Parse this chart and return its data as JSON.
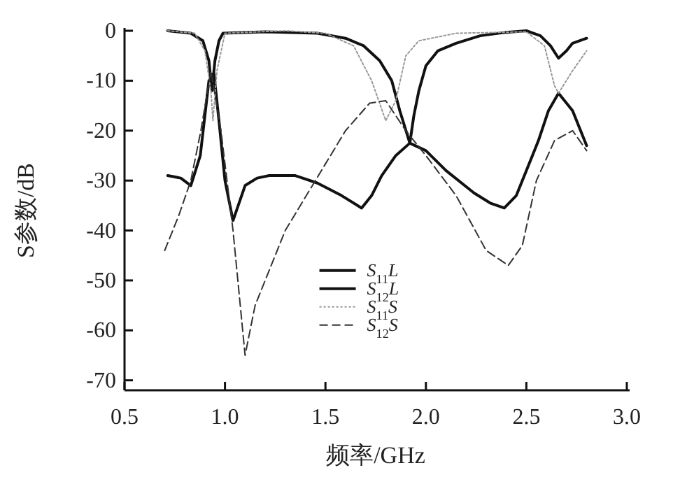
{
  "chart_data": {
    "type": "line",
    "xlabel": "频率/GHz",
    "ylabel": "S参数/dB",
    "xlim": [
      0.5,
      3.0
    ],
    "ylim": [
      -72,
      0
    ],
    "xticks": [
      0.5,
      {
        "value": 1,
        "label": "1.0"
      },
      1.5,
      {
        "value": 2,
        "label": "2.0"
      },
      2.5,
      {
        "value": 3,
        "label": "3.0"
      }
    ],
    "yticks": [
      0,
      -10,
      -20,
      -30,
      -40,
      -50,
      -60,
      -70
    ],
    "grid": false,
    "legend": "bottom",
    "marker": "none",
    "series": [
      {
        "name": "S$_{11}$L",
        "color": "#111111",
        "line_style": "solid",
        "x": [
          0.715,
          0.83,
          0.89,
          0.92,
          0.935,
          0.95,
          0.97,
          0.99,
          1.2,
          1.46,
          1.6,
          1.69,
          1.77,
          1.83,
          1.87,
          1.92,
          1.94,
          1.965,
          2.0,
          2.06,
          2.15,
          2.27,
          2.4,
          2.5,
          2.57,
          2.62,
          2.66,
          2.7,
          2.73,
          2.8
        ],
        "values": [
          0,
          -0.5,
          -2,
          -6,
          -12,
          -6,
          -2,
          -0.5,
          -0.2,
          -0.5,
          -1.5,
          -3,
          -6,
          -10,
          -16,
          -22.5,
          -17,
          -12,
          -7,
          -4,
          -2.5,
          -1,
          -0.3,
          0,
          -1,
          -3,
          -5.5,
          -4,
          -2.5,
          -1.5
        ]
      },
      {
        "name": "S$_{12}$L",
        "color": "#111111",
        "line_style": "solid",
        "x": [
          0.715,
          0.78,
          0.83,
          0.877,
          0.92,
          0.945,
          0.97,
          1.0,
          1.04,
          1.1,
          1.16,
          1.22,
          1.35,
          1.46,
          1.58,
          1.68,
          1.73,
          1.78,
          1.85,
          1.92,
          2.0,
          2.1,
          2.24,
          2.32,
          2.39,
          2.45,
          2.5,
          2.56,
          2.61,
          2.66,
          2.73,
          2.8
        ],
        "values": [
          -29,
          -29.5,
          -31,
          -25,
          -10,
          -8.5,
          -18,
          -30,
          -38,
          -31,
          -29.5,
          -29,
          -29,
          -30.5,
          -33,
          -35.5,
          -33,
          -29,
          -25,
          -22.5,
          -24,
          -28,
          -32.5,
          -34.5,
          -35.5,
          -33,
          -28,
          -22,
          -16,
          -12.5,
          -16,
          -23
        ]
      },
      {
        "name": "S$_{11}$S",
        "color": "#999999",
        "line_style": "dotted",
        "x": [
          0.715,
          0.85,
          0.9,
          0.93,
          0.94,
          0.96,
          1.0,
          1.3,
          1.5,
          1.64,
          1.73,
          1.8,
          1.85,
          1.9,
          1.965,
          2.15,
          2.5,
          2.59,
          2.64,
          2.66,
          2.73,
          2.8
        ],
        "values": [
          0,
          -0.5,
          -4,
          -12,
          -18,
          -8,
          -0.5,
          0,
          -0.5,
          -3,
          -10,
          -18,
          -14,
          -5,
          -2,
          -0.5,
          -0.2,
          -3,
          -11,
          -12.5,
          -8,
          -4
        ]
      },
      {
        "name": "S$_{12}$S",
        "color": "#333333",
        "line_style": "dashed",
        "x": [
          0.7,
          0.77,
          0.83,
          0.88,
          0.93,
          0.98,
          1.04,
          1.1,
          1.15,
          1.3,
          1.45,
          1.6,
          1.72,
          1.8,
          1.9,
          2.0,
          2.15,
          2.3,
          2.41,
          2.48,
          2.55,
          2.64,
          2.73,
          2.8
        ],
        "values": [
          -44,
          -37,
          -30,
          -20,
          -8,
          -20,
          -40,
          -65,
          -55,
          -40,
          -30,
          -20,
          -14.5,
          -14,
          -20,
          -25,
          -33,
          -44,
          -47,
          -43,
          -30,
          -22,
          -20,
          -24
        ]
      }
    ]
  }
}
